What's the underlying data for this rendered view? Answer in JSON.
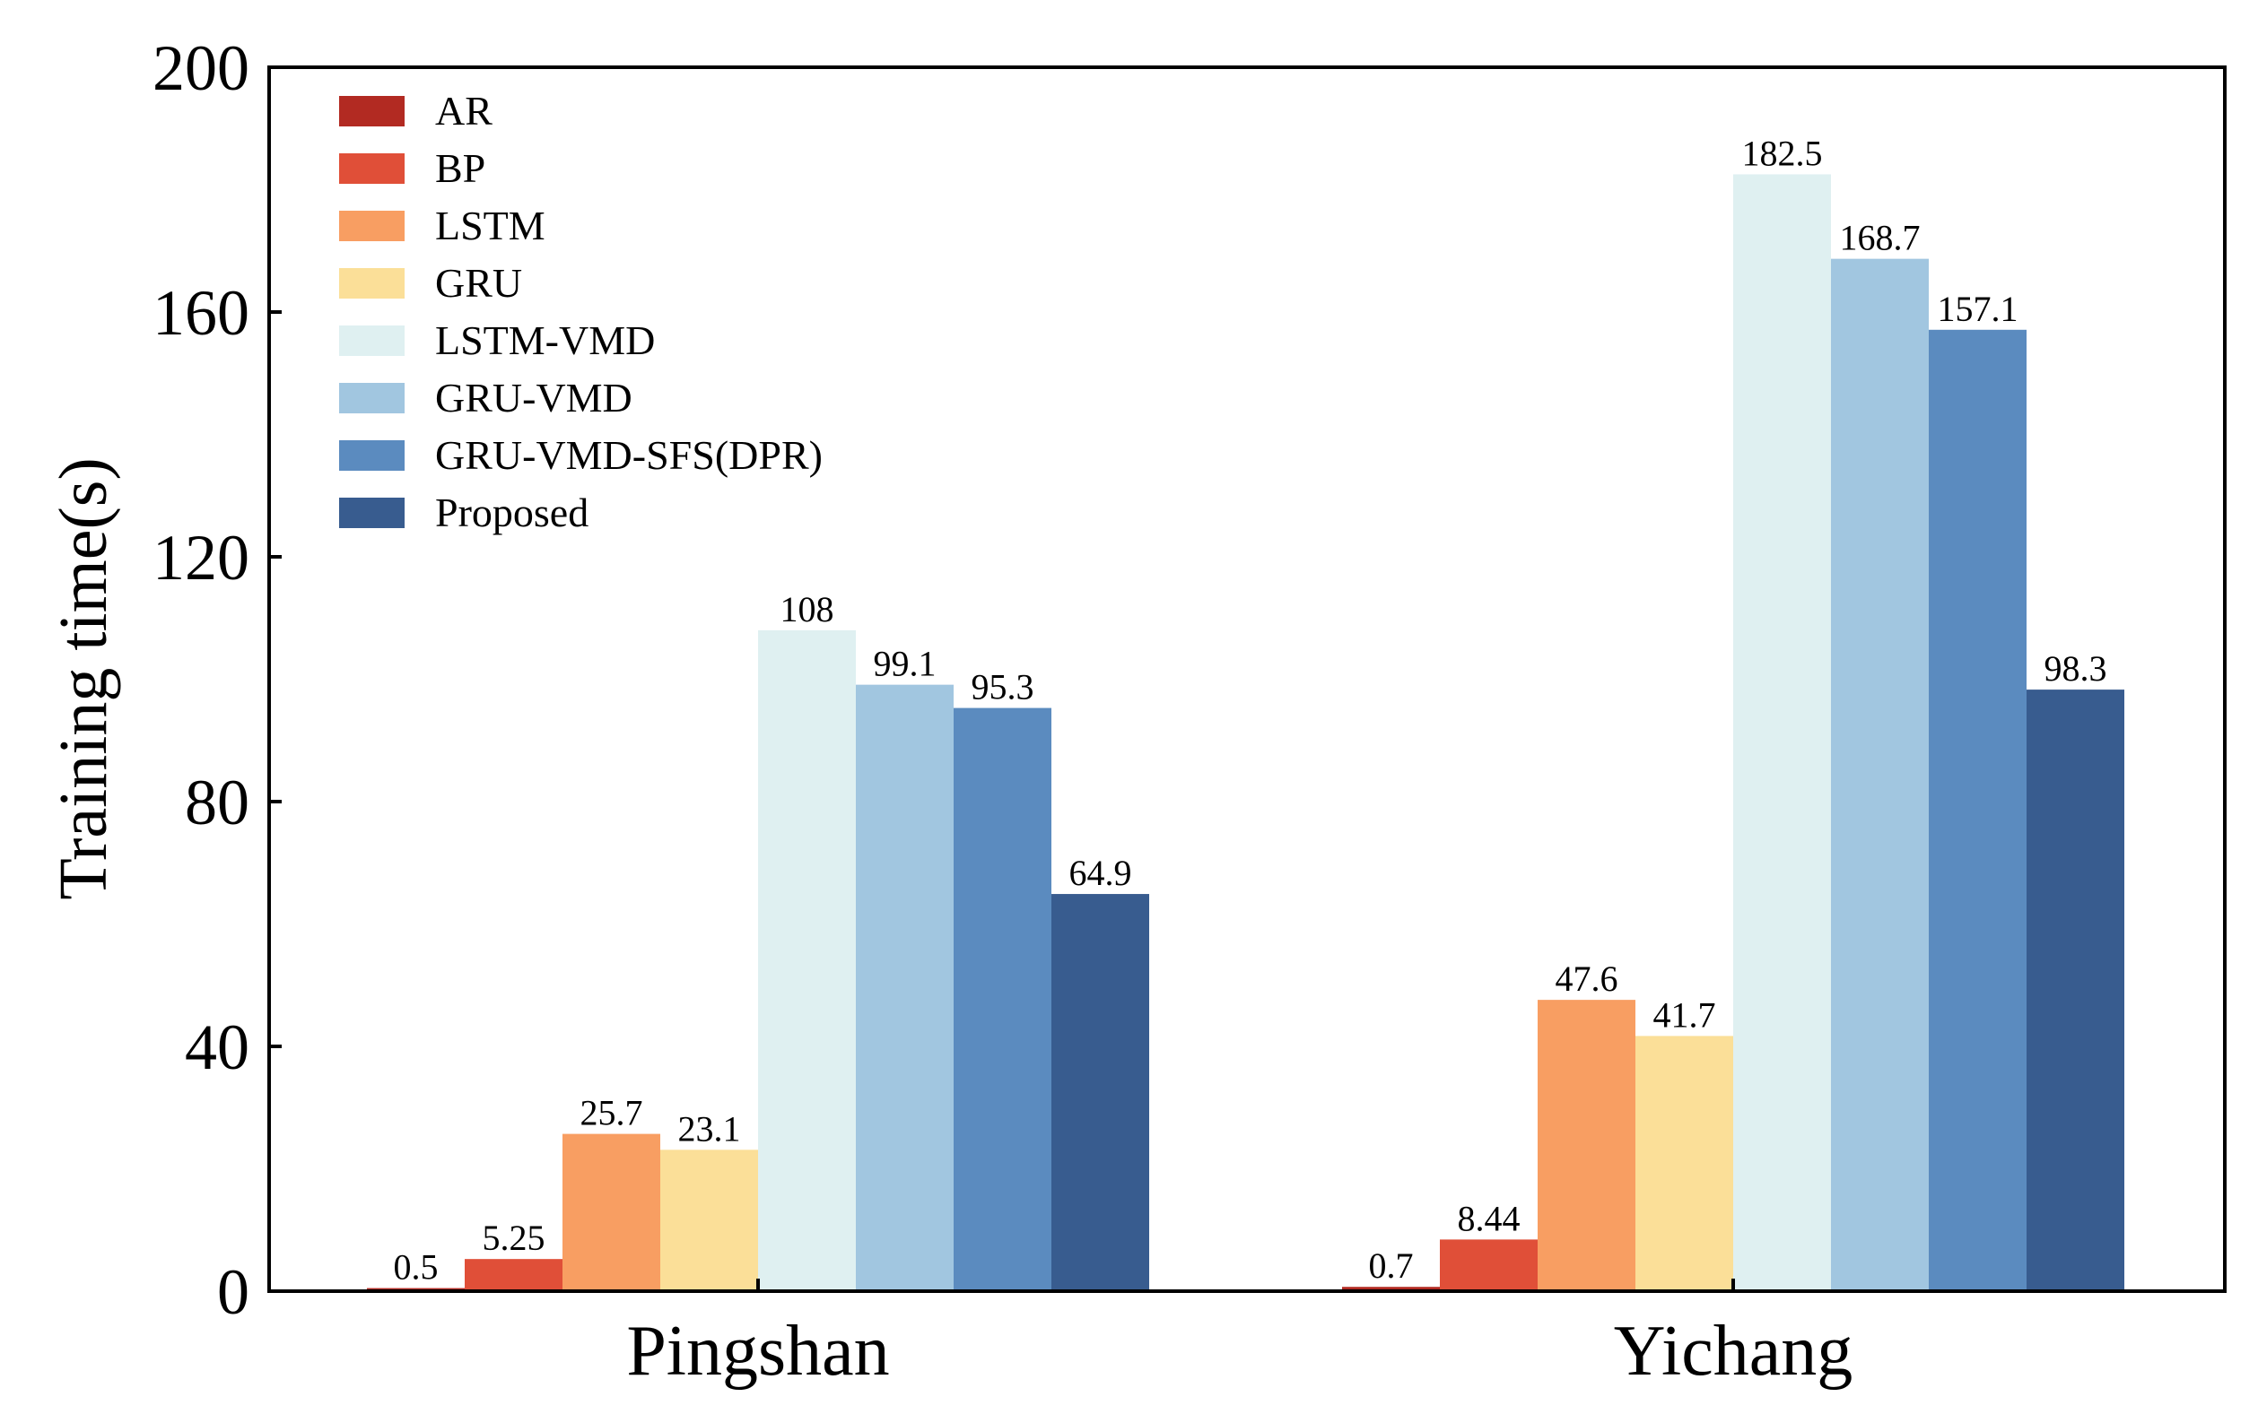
{
  "chart_data": {
    "type": "bar",
    "title": "",
    "xlabel": "",
    "ylabel": "Training time(s)",
    "ylim": [
      0,
      200
    ],
    "yticks": [
      0,
      40,
      80,
      120,
      160,
      200
    ],
    "grid": false,
    "legend_position": "top-left",
    "categories": [
      "Pingshan",
      "Yichang"
    ],
    "series": [
      {
        "name": "AR",
        "color": "#b22a22",
        "values": [
          0.5,
          0.7
        ],
        "labels": [
          "0.5",
          "0.7"
        ]
      },
      {
        "name": "BP",
        "color": "#e04f38",
        "values": [
          5.25,
          8.44
        ],
        "labels": [
          "5.25",
          "8.44"
        ]
      },
      {
        "name": "LSTM",
        "color": "#f89e62",
        "values": [
          25.7,
          47.6
        ],
        "labels": [
          "25.7",
          "47.6"
        ]
      },
      {
        "name": "GRU",
        "color": "#fbdf98",
        "values": [
          23.1,
          41.7
        ],
        "labels": [
          "23.1",
          "41.7"
        ]
      },
      {
        "name": "LSTM-VMD",
        "color": "#dff0f1",
        "values": [
          108,
          182.5
        ],
        "labels": [
          "108",
          "182.5"
        ]
      },
      {
        "name": "GRU-VMD",
        "color": "#a1c6e0",
        "values": [
          99.1,
          168.7
        ],
        "labels": [
          "99.1",
          "168.7"
        ]
      },
      {
        "name": "GRU-VMD-SFS(DPR)",
        "color": "#5b8bbf",
        "values": [
          95.3,
          157.1
        ],
        "labels": [
          "95.3",
          "157.1"
        ]
      },
      {
        "name": "Proposed",
        "color": "#385c8f",
        "values": [
          64.9,
          98.3
        ],
        "labels": [
          "64.9",
          "98.3"
        ]
      }
    ]
  }
}
